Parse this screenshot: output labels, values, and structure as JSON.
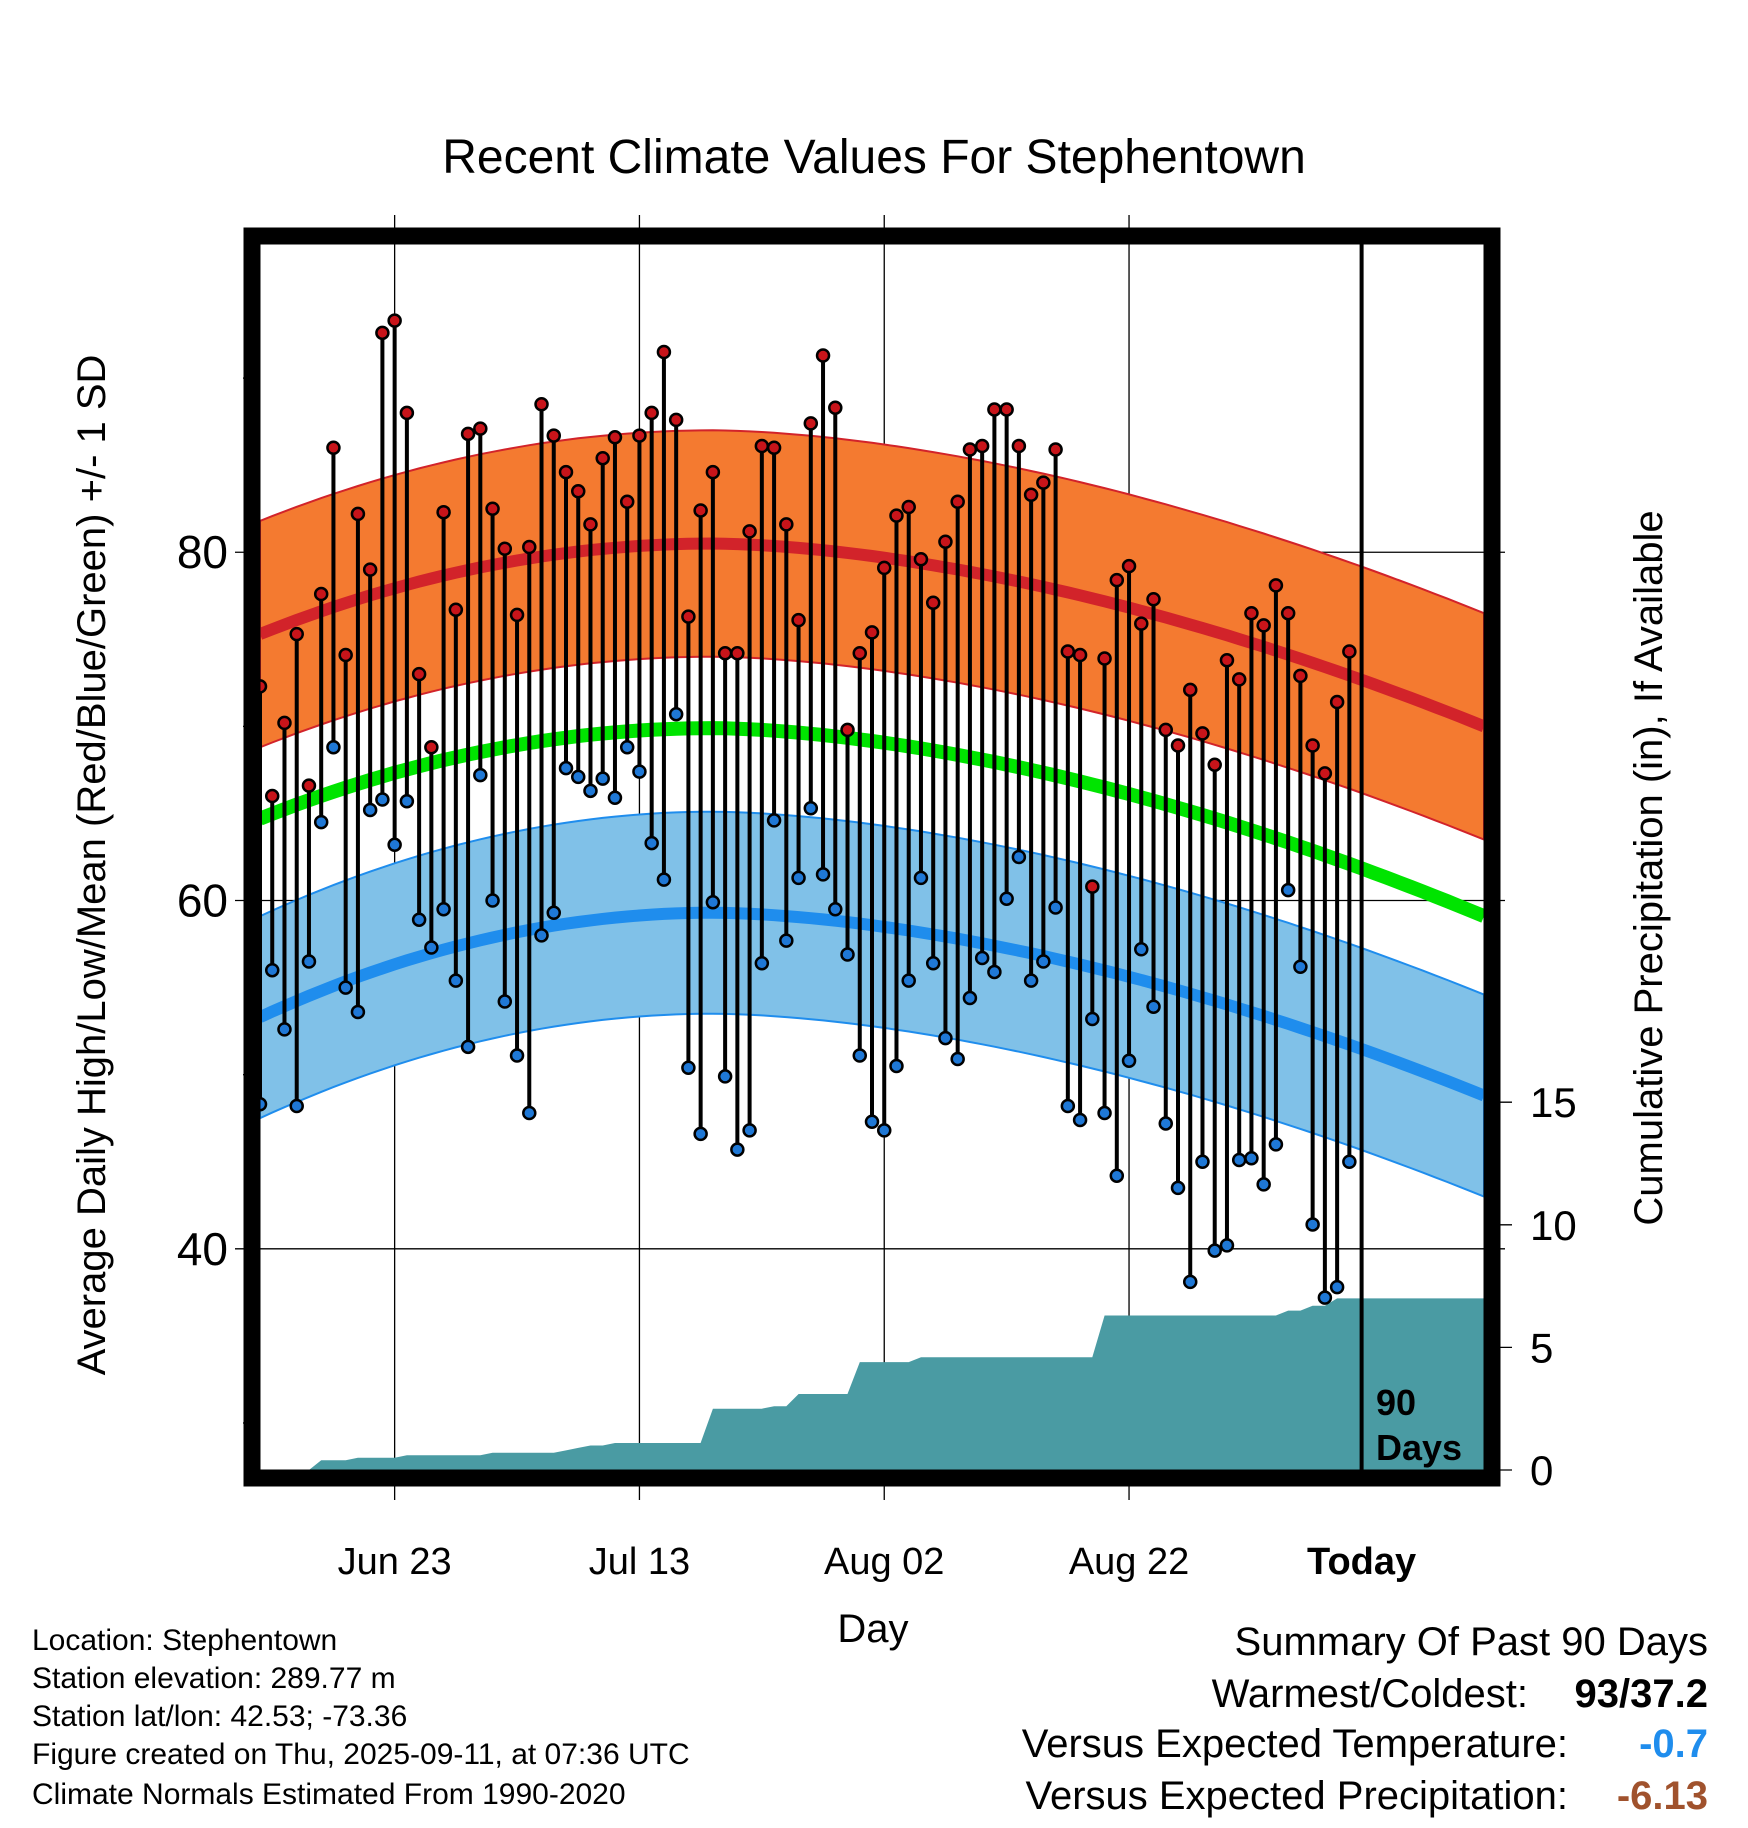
{
  "chart_data": {
    "type": "line",
    "title": "Recent Climate Values For Stephentown",
    "xlabel": "Day",
    "ylabel": "Average Daily High/Low/Mean (Red/Blue/Green) +/- 1 SD",
    "ylabel_right": "Cumulative Precipitation (in), If Available",
    "x_tick_labels": [
      "Jun 23",
      "Jul 13",
      "Aug 02",
      "Aug 22",
      "Today"
    ],
    "y_tick_labels": [
      "40",
      "60",
      "80"
    ],
    "y2_tick_labels": [
      "0",
      "5",
      "10",
      "15"
    ],
    "ylim": [
      27.3,
      97.7
    ],
    "y2lim": [
      0,
      50
    ],
    "days_shown": 101,
    "today_index": 90,
    "today_label": [
      "90",
      "Days"
    ],
    "colors": {
      "high_band": "#f47a30",
      "high_line": "#d2232a",
      "low_band": "#80c1e8",
      "low_line": "#1f8ded",
      "mean_line": "#00e400",
      "precip": "#4a9ba3",
      "high_marker": "#c8141a",
      "low_marker": "#1f78d6"
    },
    "normals": {
      "high_mean_start": 75.3,
      "high_mean_peak": 80.5,
      "high_mean_end": 70.0,
      "high_sd": 6.5,
      "low_mean_start": 53.3,
      "low_mean_peak": 59.3,
      "low_mean_end": 48.8,
      "low_sd": 5.8,
      "mean_start": 64.7,
      "mean_peak": 69.9,
      "mean_end": 59.1,
      "peak_day": 37
    },
    "series": [
      {
        "name": "High",
        "values": [
          72.3,
          66.0,
          70.2,
          75.3,
          66.6,
          77.6,
          86.0,
          74.1,
          82.2,
          79.0,
          92.6,
          93.3,
          88.0,
          73.0,
          68.8,
          82.3,
          76.7,
          86.8,
          87.1,
          82.5,
          80.2,
          76.4,
          80.3,
          88.5,
          86.7,
          84.6,
          83.5,
          81.6,
          85.4,
          86.6,
          82.9,
          86.7,
          88.0,
          91.5,
          87.6,
          76.3,
          82.4,
          84.6,
          74.2,
          74.2,
          81.2,
          86.1,
          86.0,
          81.6,
          76.1,
          87.4,
          91.3,
          88.3,
          69.8,
          74.2,
          75.4,
          79.1,
          82.1,
          82.6,
          79.6,
          77.1,
          80.6,
          82.9,
          85.9,
          86.1,
          88.2,
          88.2,
          86.1,
          83.3,
          84.0,
          85.9,
          74.3,
          74.1,
          60.8,
          73.9,
          78.4,
          79.2,
          75.9,
          77.3,
          69.8,
          68.9,
          72.1,
          69.6,
          67.8,
          73.8,
          72.7,
          76.5,
          75.8,
          78.1,
          76.5,
          72.9,
          68.9,
          67.3,
          71.4,
          74.3
        ]
      },
      {
        "name": "Low",
        "values": [
          48.3,
          56.0,
          52.6,
          48.2,
          56.5,
          64.5,
          68.8,
          55.0,
          53.6,
          65.2,
          65.8,
          63.2,
          65.7,
          58.9,
          57.3,
          59.5,
          55.4,
          51.6,
          67.2,
          60.0,
          54.2,
          51.1,
          47.8,
          58.0,
          59.3,
          67.6,
          67.1,
          66.3,
          67.0,
          65.9,
          68.8,
          67.4,
          63.3,
          61.2,
          70.7,
          50.4,
          46.6,
          59.9,
          49.9,
          45.7,
          46.8,
          56.4,
          64.6,
          57.7,
          61.3,
          65.3,
          61.5,
          59.5,
          56.9,
          51.1,
          47.3,
          46.8,
          50.5,
          55.4,
          61.3,
          56.4,
          52.1,
          50.9,
          54.4,
          56.7,
          55.9,
          60.1,
          62.5,
          55.4,
          56.5,
          59.6,
          48.2,
          47.4,
          53.2,
          47.8,
          44.2,
          50.8,
          57.2,
          53.9,
          47.2,
          43.5,
          38.1,
          45.0,
          39.9,
          40.2,
          45.1,
          45.2,
          43.7,
          46.0,
          60.6,
          56.2,
          41.4,
          37.2,
          37.8,
          45.0
        ]
      },
      {
        "name": "Precipitation",
        "values": [
          0,
          0,
          0,
          0,
          0,
          0.4,
          0.4,
          0.4,
          0.5,
          0.5,
          0.5,
          0.5,
          0.6,
          0.6,
          0.6,
          0.6,
          0.6,
          0.6,
          0.6,
          0.7,
          0.7,
          0.7,
          0.7,
          0.7,
          0.7,
          0.8,
          0.9,
          1.0,
          1.0,
          1.1,
          1.1,
          1.1,
          1.1,
          1.1,
          1.1,
          1.1,
          1.1,
          2.5,
          2.5,
          2.5,
          2.5,
          2.5,
          2.6,
          2.6,
          3.1,
          3.1,
          3.1,
          3.1,
          3.1,
          4.4,
          4.4,
          4.4,
          4.4,
          4.4,
          4.6,
          4.6,
          4.6,
          4.6,
          4.6,
          4.6,
          4.6,
          4.6,
          4.6,
          4.6,
          4.6,
          4.6,
          4.6,
          4.6,
          4.6,
          6.3,
          6.3,
          6.3,
          6.3,
          6.3,
          6.3,
          6.3,
          6.3,
          6.3,
          6.3,
          6.3,
          6.3,
          6.3,
          6.3,
          6.3,
          6.5,
          6.5,
          6.7,
          6.7,
          7.0,
          7.0,
          7.0,
          7.0,
          7.0,
          7.0,
          7.0,
          7.0,
          7.0,
          7.0,
          7.0,
          7.0,
          7.0
        ]
      }
    ]
  },
  "info": {
    "location": "Location: Stephentown",
    "elevation": "Station elevation: 289.77 m",
    "latlon": "Station lat/lon: 42.53; -73.36",
    "created": "Figure created on Thu, 2025-09-11, at 07:36 UTC",
    "normals": "Climate Normals Estimated From 1990-2020"
  },
  "summary": {
    "title": "Summary Of Past 90 Days",
    "warm_cold_label": "Warmest/Coldest:",
    "warm_cold_value": "93/37.2",
    "temp_label": "Versus Expected Temperature:",
    "temp_value": "-0.7",
    "temp_color": "#1f8ded",
    "precip_label": "Versus Expected Precipitation:",
    "precip_value": "-6.13",
    "precip_color": "#a0522d"
  }
}
